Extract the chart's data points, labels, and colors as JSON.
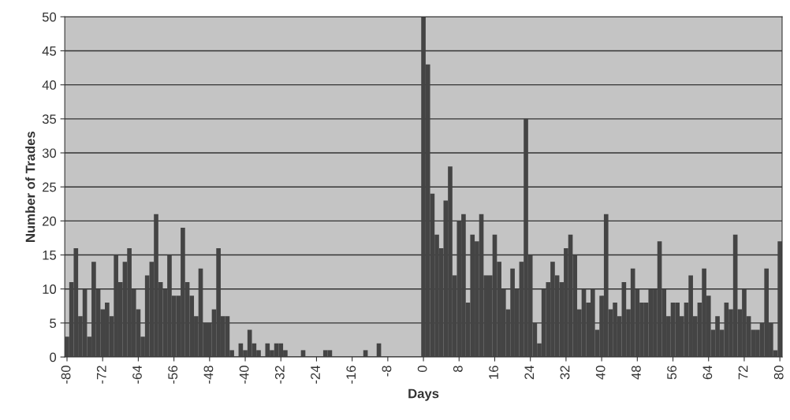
{
  "chart_data": {
    "type": "bar",
    "xlabel": "Days",
    "ylabel": "Number of Trades",
    "categories": [
      "-80",
      null,
      null,
      null,
      null,
      null,
      null,
      null,
      "-72",
      null,
      null,
      null,
      null,
      null,
      null,
      null,
      "-64",
      null,
      null,
      null,
      null,
      null,
      null,
      null,
      "-56",
      null,
      null,
      null,
      null,
      null,
      null,
      null,
      "-48",
      null,
      null,
      null,
      null,
      null,
      null,
      null,
      "-40",
      null,
      null,
      null,
      null,
      null,
      null,
      null,
      "-32",
      null,
      null,
      null,
      null,
      null,
      null,
      null,
      "-24",
      null,
      null,
      null,
      null,
      null,
      null,
      null,
      "-16",
      null,
      null,
      null,
      null,
      null,
      null,
      null,
      "-8",
      null,
      null,
      null,
      null,
      null,
      null,
      null,
      "0",
      null,
      null,
      null,
      null,
      null,
      null,
      null,
      "8",
      null,
      null,
      null,
      null,
      null,
      null,
      null,
      "16",
      null,
      null,
      null,
      null,
      null,
      null,
      null,
      "24",
      null,
      null,
      null,
      null,
      null,
      null,
      null,
      "32",
      null,
      null,
      null,
      null,
      null,
      null,
      null,
      "40",
      null,
      null,
      null,
      null,
      null,
      null,
      null,
      "48",
      null,
      null,
      null,
      null,
      null,
      null,
      null,
      "56",
      null,
      null,
      null,
      null,
      null,
      null,
      null,
      "64",
      null,
      null,
      null,
      null,
      null,
      null,
      null,
      "72",
      null,
      null,
      null,
      null,
      null,
      null,
      null,
      "80"
    ],
    "values": [
      3,
      11,
      16,
      6,
      10,
      3,
      14,
      10,
      7,
      8,
      6,
      15,
      11,
      14,
      16,
      10,
      7,
      3,
      12,
      14,
      21,
      11,
      10,
      15,
      9,
      9,
      19,
      11,
      9,
      6,
      13,
      5,
      5,
      7,
      16,
      6,
      6,
      1,
      0,
      2,
      1,
      4,
      2,
      1,
      0,
      2,
      1,
      2,
      2,
      1,
      0,
      0,
      0,
      1,
      0,
      0,
      0,
      0,
      1,
      1,
      0,
      0,
      0,
      0,
      0,
      0,
      0,
      1,
      0,
      0,
      2,
      0,
      0,
      0,
      0,
      0,
      0,
      0,
      0,
      0,
      50,
      43,
      24,
      18,
      16,
      23,
      28,
      12,
      20,
      21,
      8,
      18,
      17,
      21,
      12,
      12,
      18,
      14,
      10,
      7,
      13,
      10,
      14,
      35,
      15,
      5,
      2,
      10,
      11,
      14,
      12,
      11,
      16,
      18,
      15,
      7,
      10,
      8,
      10,
      4,
      9,
      21,
      7,
      8,
      6,
      11,
      7,
      13,
      10,
      8,
      8,
      10,
      10,
      17,
      10,
      6,
      8,
      8,
      6,
      8,
      12,
      6,
      8,
      13,
      9,
      4,
      6,
      4,
      8,
      7,
      18,
      7,
      10,
      6,
      4,
      4,
      5,
      13,
      5,
      1,
      17
    ],
    "color": "#444444",
    "ylim": [
      0,
      50
    ],
    "yticks": [
      0,
      5,
      10,
      15,
      20,
      25,
      30,
      35,
      40,
      45,
      50
    ],
    "grid": "y"
  }
}
